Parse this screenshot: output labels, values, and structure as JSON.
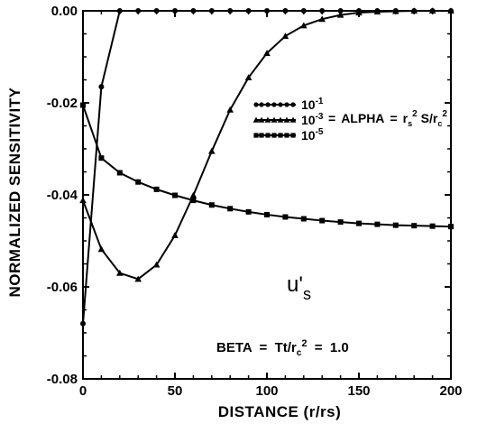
{
  "chart_data": {
    "type": "line",
    "xlabel": "DISTANCE  (r/rs)",
    "ylabel": "NORMALIZED  SENSITIVITY",
    "xlim": [
      0,
      200
    ],
    "ylim": [
      -0.08,
      0.0
    ],
    "xticks": [
      0,
      50,
      100,
      150,
      200
    ],
    "xtick_labels": [
      "0",
      "50",
      "100",
      "150",
      "200"
    ],
    "yticks": [
      0.0,
      -0.02,
      -0.04,
      -0.06,
      -0.08
    ],
    "ytick_labels": [
      "0.00",
      "-0.02",
      "-0.04",
      "-0.06",
      "-0.08"
    ],
    "grid": false,
    "legend_position": "top-right",
    "legend_suffix": "= ALPHA = r_s² S/r_c²",
    "legend_suffix_parts": {
      "eq1": "=",
      "alpha": "ALPHA",
      "eq2": "=",
      "r1": "r",
      "sub_s": "s",
      "sup_2a": "2",
      "s": "S/r",
      "sub_c": "c",
      "sup_2b": "2"
    },
    "series": [
      {
        "name": "10^-1",
        "name_base": "10",
        "name_exp": "-1",
        "marker": "circle",
        "x": [
          0,
          10,
          20,
          30,
          40,
          50,
          60,
          70,
          80,
          90,
          100,
          110,
          120,
          130,
          140,
          150,
          160,
          170,
          180,
          190,
          200
        ],
        "y": [
          -0.068,
          -0.0165,
          0.0,
          0.0,
          0.0,
          0.0,
          0.0,
          0.0,
          0.0,
          0.0,
          0.0,
          0.0,
          0.0,
          0.0,
          0.0,
          0.0,
          0.0,
          0.0,
          0.0,
          0.0,
          0.0
        ]
      },
      {
        "name": "10^-3",
        "name_base": "10",
        "name_exp": "-3",
        "marker": "triangle",
        "x": [
          0,
          10,
          20,
          30,
          40,
          50,
          60,
          70,
          80,
          90,
          100,
          110,
          120,
          130,
          140,
          150,
          160,
          170,
          180,
          190,
          200
        ],
        "y": [
          -0.0412,
          -0.0518,
          -0.057,
          -0.0583,
          -0.0552,
          -0.0488,
          -0.0401,
          -0.0305,
          -0.0215,
          -0.0145,
          -0.0092,
          -0.0055,
          -0.0032,
          -0.0018,
          -0.0009,
          -0.0004,
          -0.0002,
          -0.0001,
          0.0,
          0.0,
          0.0
        ]
      },
      {
        "name": "10^-5",
        "name_base": "10",
        "name_exp": "-5",
        "marker": "square",
        "x": [
          0,
          10,
          20,
          30,
          40,
          50,
          60,
          70,
          80,
          90,
          100,
          110,
          120,
          130,
          140,
          150,
          160,
          170,
          180,
          190,
          200
        ],
        "y": [
          -0.0205,
          -0.032,
          -0.0352,
          -0.0372,
          -0.0388,
          -0.0401,
          -0.0412,
          -0.0422,
          -0.043,
          -0.0437,
          -0.0443,
          -0.0448,
          -0.0452,
          -0.0456,
          -0.0459,
          -0.0462,
          -0.0464,
          -0.0466,
          -0.0467,
          -0.0468,
          -0.0469
        ]
      }
    ],
    "annotations": {
      "u_main": "u'",
      "u_sub": "s",
      "beta_pre": "BETA  =  Tt/r",
      "beta_sub": "c",
      "beta_sup": "2",
      "beta_post": "  =  1.0"
    }
  }
}
